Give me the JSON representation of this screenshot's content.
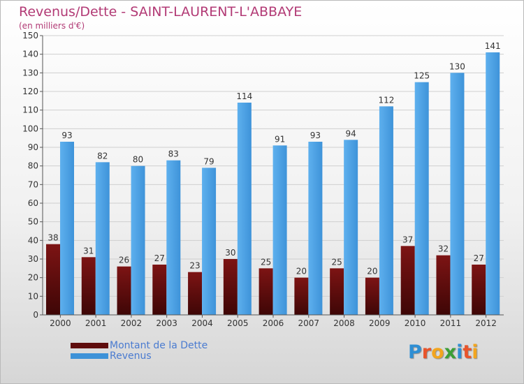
{
  "chart_data": {
    "type": "bar",
    "title": "Revenus/Dette - SAINT-LAURENT-L'ABBAYE",
    "subtitle": "(en milliers d'€)",
    "xlabel": "",
    "ylabel": "",
    "ylim": [
      0,
      150
    ],
    "yticks": [
      "0",
      "10",
      "20",
      "30",
      "40",
      "50",
      "60",
      "70",
      "80",
      "90",
      "100",
      "110",
      "120",
      "130",
      "140",
      "150"
    ],
    "grid": true,
    "legend_position": "bottom-left",
    "categories": [
      "2000",
      "2001",
      "2002",
      "2003",
      "2004",
      "2005",
      "2006",
      "2007",
      "2008",
      "2009",
      "2010",
      "2011",
      "2012"
    ],
    "series": [
      {
        "name": "Montant de la Dette",
        "color": "#7a1010",
        "values": [
          38,
          31,
          26,
          27,
          23,
          30,
          25,
          20,
          25,
          20,
          37,
          32,
          27
        ]
      },
      {
        "name": "Revenus",
        "color": "#4fa3e6",
        "values": [
          93,
          82,
          80,
          83,
          79,
          114,
          91,
          93,
          94,
          112,
          125,
          130,
          141
        ]
      }
    ]
  },
  "legend": {
    "items": [
      {
        "label": "Montant de la Dette",
        "color": "#5e0c0c"
      },
      {
        "label": "Revenus",
        "color": "#3d92d8"
      }
    ]
  },
  "logo": {
    "letters": [
      "P",
      "r",
      "o",
      "x",
      "i",
      "t",
      "i"
    ],
    "colors": [
      "#2f8fd4",
      "#e8542b",
      "#f2a51f",
      "#3c9f36",
      "#2f8fd4",
      "#e8542b",
      "#f2a51f"
    ]
  }
}
